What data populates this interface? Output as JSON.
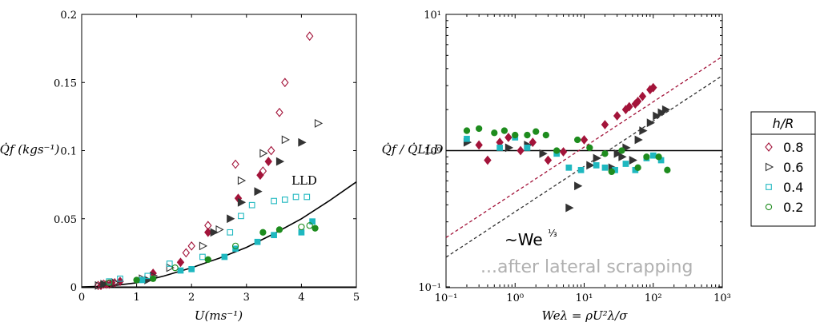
{
  "colors": {
    "s08": "#a3143a",
    "s06": "#333333",
    "s04": "#1fb8c0",
    "s02": "#1e8c1e",
    "fit08": "#a3143a",
    "fit06": "#333333",
    "note": "#b0b0b0"
  },
  "legend": {
    "title": "h/R",
    "entries": [
      {
        "label": "0.8",
        "marker": "diamond-open",
        "color": "#a3143a"
      },
      {
        "label": "0.6",
        "marker": "triangle-open",
        "color": "#333333"
      },
      {
        "label": "0.4",
        "marker": "square-open",
        "color": "#1fb8c0"
      },
      {
        "label": "0.2",
        "marker": "circle-open",
        "color": "#1e8c1e"
      }
    ]
  },
  "chart_data": [
    {
      "type": "scatter",
      "xlabel": "U(ms⁻¹)",
      "ylabel": "Q̇f (kgs⁻¹)",
      "xlim": [
        0,
        5
      ],
      "ylim": [
        0,
        0.2
      ],
      "xticks": [
        "0",
        "1",
        "2",
        "3",
        "4",
        "5"
      ],
      "yticks": [
        "0",
        "0.05",
        "0.1",
        "0.15",
        "0.2"
      ],
      "annotation": "LLD",
      "curve": {
        "name": "LLD",
        "x": [
          0,
          0.5,
          1.0,
          1.5,
          2.0,
          2.5,
          3.0,
          3.5,
          4.0,
          4.5,
          5.0
        ],
        "y": [
          0,
          0.0005,
          0.003,
          0.008,
          0.014,
          0.021,
          0.029,
          0.039,
          0.05,
          0.063,
          0.077
        ]
      },
      "series": [
        {
          "name": "0.8",
          "marker": "diamond",
          "filled": [
            [
              0.35,
              0.001
            ],
            [
              0.45,
              0.002
            ],
            [
              0.55,
              0.003
            ],
            [
              0.7,
              0.004
            ],
            [
              1.3,
              0.01
            ],
            [
              1.8,
              0.018
            ],
            [
              2.3,
              0.04
            ],
            [
              2.85,
              0.065
            ],
            [
              3.25,
              0.082
            ],
            [
              3.4,
              0.092
            ]
          ],
          "open": [
            [
              0.3,
              0.001
            ],
            [
              0.4,
              0.002
            ],
            [
              0.5,
              0.002
            ],
            [
              0.6,
              0.003
            ],
            [
              1.9,
              0.025
            ],
            [
              2.0,
              0.03
            ],
            [
              2.3,
              0.045
            ],
            [
              2.8,
              0.09
            ],
            [
              3.3,
              0.085
            ],
            [
              3.45,
              0.1
            ],
            [
              3.6,
              0.128
            ],
            [
              3.7,
              0.15
            ],
            [
              4.15,
              0.184
            ]
          ]
        },
        {
          "name": "0.6",
          "marker": "triangle",
          "filled": [
            [
              0.4,
              0.002
            ],
            [
              1.2,
              0.005
            ],
            [
              2.4,
              0.04
            ],
            [
              2.7,
              0.05
            ],
            [
              2.9,
              0.062
            ],
            [
              3.2,
              0.07
            ],
            [
              3.6,
              0.092
            ],
            [
              4.0,
              0.106
            ]
          ],
          "open": [
            [
              0.3,
              0.001
            ],
            [
              0.6,
              0.003
            ],
            [
              1.1,
              0.006
            ],
            [
              1.3,
              0.008
            ],
            [
              1.6,
              0.014
            ],
            [
              2.2,
              0.03
            ],
            [
              2.5,
              0.042
            ],
            [
              2.9,
              0.078
            ],
            [
              3.3,
              0.098
            ],
            [
              3.7,
              0.108
            ],
            [
              4.3,
              0.12
            ]
          ]
        },
        {
          "name": "0.4",
          "marker": "square",
          "filled": [
            [
              1.1,
              0.005
            ],
            [
              1.8,
              0.012
            ],
            [
              2.0,
              0.013
            ],
            [
              2.6,
              0.022
            ],
            [
              2.8,
              0.028
            ],
            [
              3.2,
              0.033
            ],
            [
              3.5,
              0.038
            ],
            [
              4.0,
              0.04
            ],
            [
              4.2,
              0.048
            ]
          ],
          "open": [
            [
              0.5,
              0.004
            ],
            [
              0.7,
              0.006
            ],
            [
              1.2,
              0.008
            ],
            [
              1.6,
              0.017
            ],
            [
              2.2,
              0.022
            ],
            [
              2.7,
              0.04
            ],
            [
              2.9,
              0.052
            ],
            [
              3.1,
              0.06
            ],
            [
              3.5,
              0.063
            ],
            [
              3.7,
              0.064
            ],
            [
              3.9,
              0.066
            ],
            [
              4.1,
              0.066
            ]
          ]
        },
        {
          "name": "0.2",
          "marker": "circle",
          "filled": [
            [
              1.0,
              0.005
            ],
            [
              1.3,
              0.006
            ],
            [
              2.3,
              0.02
            ],
            [
              3.3,
              0.04
            ],
            [
              3.6,
              0.042
            ],
            [
              4.25,
              0.043
            ]
          ],
          "open": [
            [
              0.5,
              0.003
            ],
            [
              1.7,
              0.014
            ],
            [
              2.8,
              0.03
            ],
            [
              4.0,
              0.044
            ],
            [
              4.15,
              0.045
            ]
          ]
        }
      ]
    },
    {
      "type": "scatter",
      "xscale": "log",
      "yscale": "log",
      "xlabel": "Weλ = ρU²λ/σ",
      "ylabel": "Q̇f / Q̇LLD",
      "xlim": [
        0.1,
        1000
      ],
      "ylim": [
        0.1,
        10
      ],
      "xticks": [
        "10⁻¹",
        "10⁰",
        "10¹",
        "10²",
        "10³"
      ],
      "yticks": [
        "10⁻¹",
        "10⁰",
        "10¹"
      ],
      "reference_line": 1.0,
      "fit_label": "~We",
      "fit_exponent": "⅓",
      "note": "...after lateral scrapping",
      "fit_lines": [
        {
          "color": "#a3143a",
          "points": [
            [
              0.1,
              0.23
            ],
            [
              1000,
              4.9
            ]
          ]
        },
        {
          "color": "#333333",
          "points": [
            [
              0.1,
              0.165
            ],
            [
              1000,
              3.55
            ]
          ]
        }
      ],
      "series": [
        {
          "name": "0.8",
          "marker": "diamond",
          "points": [
            [
              0.3,
              1.1
            ],
            [
              0.4,
              0.85
            ],
            [
              0.6,
              1.15
            ],
            [
              0.8,
              1.25
            ],
            [
              1.2,
              1.0
            ],
            [
              1.8,
              1.15
            ],
            [
              3.0,
              0.85
            ],
            [
              5,
              0.98
            ],
            [
              10,
              1.2
            ],
            [
              20,
              1.55
            ],
            [
              30,
              1.8
            ],
            [
              40,
              2.0
            ],
            [
              60,
              2.3
            ],
            [
              70,
              2.5
            ],
            [
              90,
              2.8
            ],
            [
              100,
              2.9
            ],
            [
              45,
              2.1
            ],
            [
              55,
              2.2
            ]
          ]
        },
        {
          "name": "0.6",
          "marker": "triangle",
          "points": [
            [
              0.2,
              1.15
            ],
            [
              0.8,
              1.05
            ],
            [
              1.5,
              1.1
            ],
            [
              2.5,
              0.95
            ],
            [
              6,
              0.38
            ],
            [
              8,
              0.55
            ],
            [
              12,
              0.78
            ],
            [
              15,
              0.88
            ],
            [
              25,
              0.75
            ],
            [
              30,
              0.95
            ],
            [
              35,
              0.9
            ],
            [
              40,
              1.05
            ],
            [
              50,
              0.85
            ],
            [
              60,
              1.2
            ],
            [
              70,
              1.4
            ],
            [
              90,
              1.6
            ],
            [
              110,
              1.8
            ],
            [
              130,
              1.9
            ],
            [
              150,
              2.0
            ]
          ]
        },
        {
          "name": "0.4",
          "marker": "square",
          "points": [
            [
              0.2,
              1.22
            ],
            [
              0.6,
              1.05
            ],
            [
              1.0,
              1.25
            ],
            [
              1.5,
              1.05
            ],
            [
              4,
              0.95
            ],
            [
              6,
              0.75
            ],
            [
              9,
              0.72
            ],
            [
              15,
              0.78
            ],
            [
              20,
              0.75
            ],
            [
              28,
              0.72
            ],
            [
              40,
              0.8
            ],
            [
              55,
              0.72
            ],
            [
              80,
              0.88
            ],
            [
              100,
              0.92
            ],
            [
              130,
              0.85
            ]
          ]
        },
        {
          "name": "0.2",
          "marker": "circle",
          "points": [
            [
              0.2,
              1.4
            ],
            [
              0.3,
              1.45
            ],
            [
              0.5,
              1.35
            ],
            [
              0.7,
              1.4
            ],
            [
              1.0,
              1.3
            ],
            [
              1.5,
              1.3
            ],
            [
              2.0,
              1.38
            ],
            [
              2.8,
              1.3
            ],
            [
              4,
              1.0
            ],
            [
              8,
              1.2
            ],
            [
              12,
              1.05
            ],
            [
              20,
              0.95
            ],
            [
              25,
              0.7
            ],
            [
              35,
              1.0
            ],
            [
              60,
              0.75
            ],
            [
              80,
              0.9
            ],
            [
              120,
              0.9
            ],
            [
              160,
              0.72
            ]
          ]
        }
      ]
    }
  ]
}
